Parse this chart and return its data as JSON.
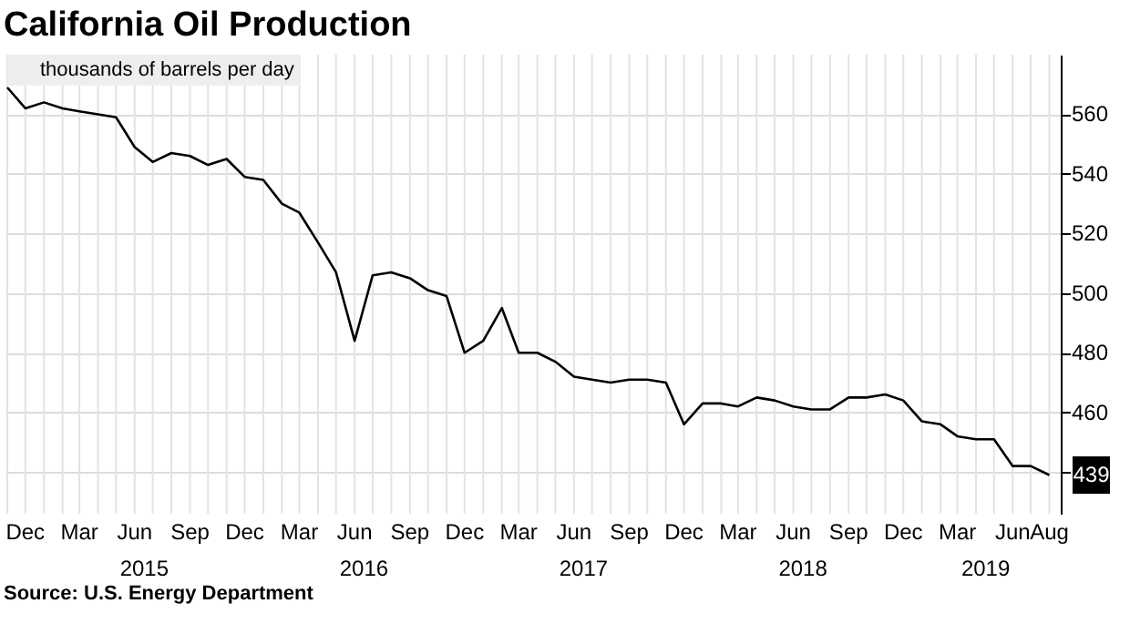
{
  "chart_data": {
    "type": "line",
    "title": "California Oil Production",
    "x": [
      "2014-11",
      "2014-12",
      "2015-01",
      "2015-02",
      "2015-03",
      "2015-04",
      "2015-05",
      "2015-06",
      "2015-07",
      "2015-08",
      "2015-09",
      "2015-10",
      "2015-11",
      "2015-12",
      "2016-01",
      "2016-02",
      "2016-03",
      "2016-04",
      "2016-05",
      "2016-06",
      "2016-07",
      "2016-08",
      "2016-09",
      "2016-10",
      "2016-11",
      "2016-12",
      "2017-01",
      "2017-02",
      "2017-03",
      "2017-04",
      "2017-05",
      "2017-06",
      "2017-07",
      "2017-08",
      "2017-09",
      "2017-10",
      "2017-11",
      "2017-12",
      "2018-01",
      "2018-02",
      "2018-03",
      "2018-04",
      "2018-05",
      "2018-06",
      "2018-07",
      "2018-08",
      "2018-09",
      "2018-10",
      "2018-11",
      "2018-12",
      "2019-01",
      "2019-02",
      "2019-03",
      "2019-04",
      "2019-05",
      "2019-06",
      "2019-07",
      "2019-08"
    ],
    "series": [
      {
        "name": "thousands of barrels per day",
        "color": "#000000",
        "values": [
          569,
          562,
          564,
          562,
          561,
          560,
          559,
          549,
          544,
          547,
          546,
          543,
          545,
          539,
          538,
          530,
          527,
          517,
          507,
          484,
          506,
          507,
          505,
          501,
          499,
          480,
          484,
          495,
          480,
          480,
          477,
          472,
          471,
          470,
          471,
          471,
          470,
          456,
          463,
          463,
          462,
          465,
          464,
          462,
          461,
          461,
          465,
          465,
          466,
          464,
          457,
          456,
          452,
          451,
          451,
          442,
          442,
          439
        ],
        "value_labels": [
          null,
          null,
          null,
          null,
          null,
          null,
          null,
          null,
          null,
          null,
          null,
          null,
          null,
          null,
          null,
          null,
          null,
          null,
          null,
          null,
          null,
          null,
          null,
          null,
          null,
          null,
          null,
          null,
          null,
          null,
          null,
          null,
          null,
          null,
          null,
          null,
          null,
          null,
          null,
          null,
          null,
          null,
          null,
          null,
          null,
          null,
          null,
          null,
          null,
          null,
          null,
          null,
          null,
          null,
          null,
          null,
          null,
          "439"
        ]
      }
    ],
    "xlim": [
      "2014-11-01",
      "2019-08-20"
    ],
    "xticks": [
      {
        "value": "2014-12",
        "label": "Dec"
      },
      {
        "value": "2015-03",
        "label": "Mar"
      },
      {
        "value": "2015-06",
        "label": "Jun"
      },
      {
        "value": "2015-09",
        "label": "Sep"
      },
      {
        "value": "2015-12",
        "label": "Dec"
      },
      {
        "value": "2016-03",
        "label": "Mar"
      },
      {
        "value": "2016-06",
        "label": "Jun"
      },
      {
        "value": "2016-09",
        "label": "Sep"
      },
      {
        "value": "2016-12",
        "label": "Dec"
      },
      {
        "value": "2017-03",
        "label": "Mar"
      },
      {
        "value": "2017-06",
        "label": "Jun"
      },
      {
        "value": "2017-09",
        "label": "Sep"
      },
      {
        "value": "2017-12",
        "label": "Dec"
      },
      {
        "value": "2018-03",
        "label": "Mar"
      },
      {
        "value": "2018-06",
        "label": "Jun"
      },
      {
        "value": "2018-09",
        "label": "Sep"
      },
      {
        "value": "2018-12",
        "label": "Dec"
      },
      {
        "value": "2019-03",
        "label": "Mar"
      },
      {
        "value": "2019-06",
        "label": "Jun"
      },
      {
        "value": "2019-08",
        "label": "Aug"
      }
    ],
    "ylim": [
      426,
      580
    ],
    "yticks": [
      {
        "value": 440,
        "label": null
      },
      460,
      480,
      500,
      520,
      540,
      560
    ],
    "grid": true,
    "legend": "top left",
    "annotations": [
      "2015",
      "2016",
      "2017",
      "2018",
      "2019",
      "Source: U.S. Energy Department"
    ]
  }
}
